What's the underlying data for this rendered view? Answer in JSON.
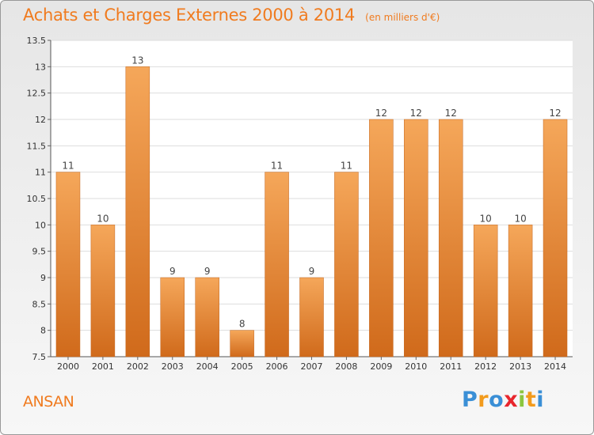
{
  "title": "Achats et Charges Externes 2000 à 2014",
  "unit": "(en milliers d'€)",
  "location": "ANSAN",
  "logo": {
    "letters": [
      "P",
      "r",
      "o",
      "x",
      "i",
      "t",
      "i"
    ],
    "colors": [
      "#3a8fd6",
      "#f29b1d",
      "#3a8fd6",
      "#e8262d",
      "#8cc63f",
      "#f29b1d",
      "#3a8fd6"
    ]
  },
  "colors": {
    "bar_top": "#f5a75a",
    "bar_bottom": "#d06a1b",
    "title": "#f07b1f"
  },
  "chart_data": {
    "type": "bar",
    "title": "Achats et Charges Externes 2000 à 2014",
    "xlabel": "",
    "ylabel": "",
    "categories": [
      "2000",
      "2001",
      "2002",
      "2003",
      "2004",
      "2005",
      "2006",
      "2007",
      "2008",
      "2009",
      "2010",
      "2011",
      "2012",
      "2013",
      "2014"
    ],
    "values": [
      11,
      10,
      13,
      9,
      9,
      8,
      11,
      9,
      11,
      12,
      12,
      12,
      10,
      10,
      12
    ],
    "ylim": [
      7.5,
      13.5
    ],
    "yticks": [
      "7.5",
      "8",
      "8.5",
      "9",
      "9.5",
      "10",
      "10.5",
      "11",
      "11.5",
      "12",
      "12.5",
      "13",
      "13.5"
    ],
    "grid": true
  }
}
